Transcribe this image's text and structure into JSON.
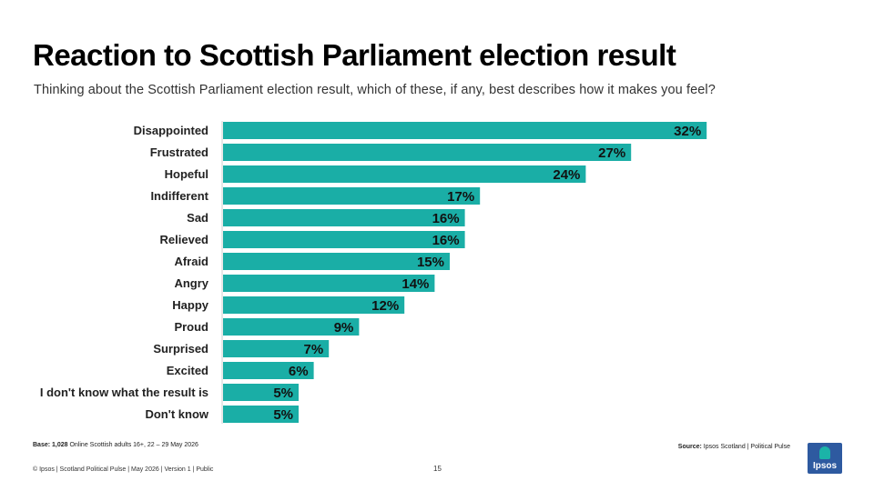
{
  "title": "Reaction to Scottish Parliament election result",
  "subtitle": "Thinking about the Scottish Parliament election result, which of these, if any, best describes how it makes you feel?",
  "chart_data": {
    "type": "bar",
    "orientation": "horizontal",
    "categories": [
      "Disappointed",
      "Frustrated",
      "Hopeful",
      "Indifferent",
      "Sad",
      "Relieved",
      "Afraid",
      "Angry",
      "Happy",
      "Proud",
      "Surprised",
      "Excited",
      "I don't know what the result is",
      "Don't know"
    ],
    "values": [
      32,
      27,
      24,
      17,
      16,
      16,
      15,
      14,
      12,
      9,
      7,
      6,
      5,
      5
    ],
    "value_labels": [
      "32%",
      "27%",
      "24%",
      "17%",
      "16%",
      "16%",
      "15%",
      "14%",
      "12%",
      "9%",
      "7%",
      "6%",
      "5%",
      "5%"
    ],
    "bar_color": "#1aaea6",
    "grid": false
  },
  "base": {
    "label": "Base: 1,028",
    "text": "Online Scottish adults 16+, 22 – 29 May 2026"
  },
  "source": {
    "label": "Source:",
    "text": "Ipsos Scotland | Political Pulse"
  },
  "footer": "© Ipsos | Scotland Political Pulse | May 2026 | Version 1 | Public",
  "page_number": "15",
  "logo": {
    "text": "Ipsos",
    "colors": {
      "background": "#2e5aa0",
      "accent": "#1bb3a8"
    }
  }
}
